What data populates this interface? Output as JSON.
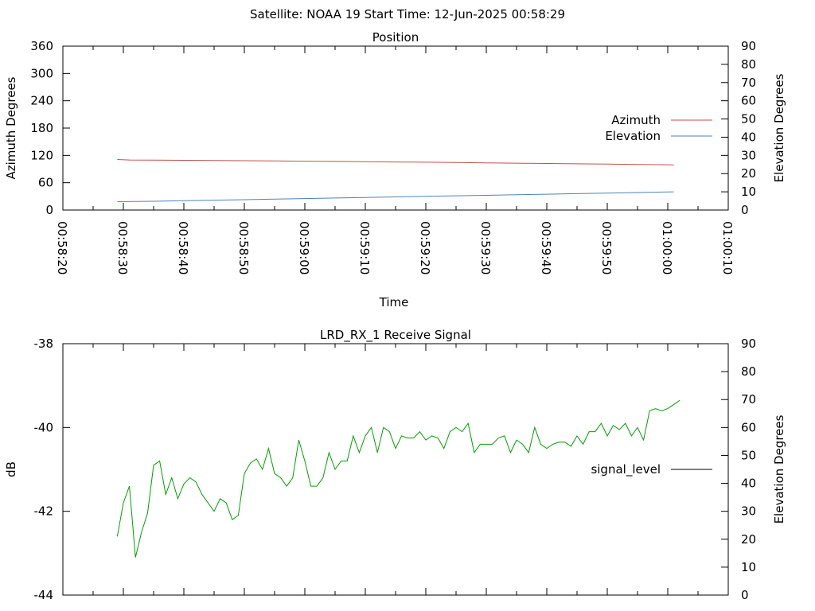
{
  "header": {
    "title": "Satellite: NOAA 19    Start Time: 12-Jun-2025 00:58:29"
  },
  "chart_data": [
    {
      "type": "line",
      "title": "Position",
      "xlabel": "Time",
      "ylabel": "Azimuth Degrees",
      "y2label": "Elevation Degrees",
      "xlim": [
        "00:58:20",
        "01:00:10"
      ],
      "x_ticks": [
        "00:58:20",
        "00:58:30",
        "00:58:40",
        "00:58:50",
        "00:59:00",
        "00:59:10",
        "00:59:20",
        "00:59:30",
        "00:59:40",
        "00:59:50",
        "01:00:00",
        "01:00:10"
      ],
      "ylim": [
        0,
        360
      ],
      "y_ticks": [
        "0",
        "60",
        "120",
        "180",
        "240",
        "300",
        "360"
      ],
      "y2lim": [
        0,
        90
      ],
      "y2_ticks": [
        "0",
        "10",
        "20",
        "30",
        "40",
        "50",
        "60",
        "70",
        "80",
        "90"
      ],
      "legend": "right",
      "grid": false,
      "series": [
        {
          "name": "Azimuth",
          "axis": "y",
          "color": "#c0504d",
          "x": [
            "00:58:29",
            "00:58:31",
            "00:58:35",
            "00:58:40",
            "00:58:45",
            "00:58:50",
            "00:58:55",
            "00:59:00",
            "00:59:05",
            "00:59:10",
            "00:59:15",
            "00:59:20",
            "00:59:25",
            "00:59:30",
            "00:59:35",
            "00:59:40",
            "00:59:45",
            "00:59:50",
            "00:59:55",
            "01:00:00",
            "01:00:01"
          ],
          "values": [
            111,
            110,
            109.6,
            109.2,
            108.8,
            108.3,
            107.8,
            107.3,
            106.8,
            106.2,
            105.6,
            105,
            104.3,
            103.6,
            102.9,
            102.2,
            101.5,
            100.8,
            100.1,
            99.4,
            99.2
          ]
        },
        {
          "name": "Elevation",
          "axis": "y2",
          "color": "#4f81bd",
          "x": [
            "00:58:29",
            "00:58:35",
            "00:58:40",
            "00:58:45",
            "00:58:50",
            "00:58:55",
            "00:59:00",
            "00:59:05",
            "00:59:10",
            "00:59:15",
            "00:59:20",
            "00:59:25",
            "00:59:30",
            "00:59:35",
            "00:59:40",
            "00:59:45",
            "00:59:50",
            "00:59:55",
            "01:00:00",
            "01:00:01"
          ],
          "values": [
            4.6,
            4.8,
            5.1,
            5.4,
            5.7,
            6.0,
            6.3,
            6.6,
            6.9,
            7.2,
            7.5,
            7.8,
            8.1,
            8.4,
            8.7,
            9.0,
            9.3,
            9.6,
            9.9,
            10.0
          ]
        }
      ]
    },
    {
      "type": "line",
      "title": "LRD_RX_1 Receive Signal",
      "xlabel": "",
      "ylabel": "dB",
      "y2label": "Elevation Degrees",
      "xlim": [
        "00:58:20",
        "01:00:10"
      ],
      "ylim": [
        -44,
        -38
      ],
      "y_ticks": [
        "-38",
        "-40",
        "-42",
        "-44"
      ],
      "y2lim": [
        0,
        90
      ],
      "y2_ticks": [
        "0",
        "10",
        "20",
        "30",
        "40",
        "50",
        "60",
        "70",
        "80",
        "90"
      ],
      "legend": "right",
      "grid": false,
      "series": [
        {
          "name": "signal_level",
          "color": "#00a000",
          "legend_color": "#000000",
          "x_start": "00:58:29",
          "x_step_seconds": 1,
          "values": [
            -42.6,
            -41.8,
            -41.4,
            -43.1,
            -42.5,
            -42.05,
            -40.9,
            -40.8,
            -41.6,
            -41.2,
            -41.7,
            -41.35,
            -41.2,
            -41.3,
            -41.6,
            -41.8,
            -42.0,
            -41.7,
            -41.8,
            -42.2,
            -42.1,
            -41.1,
            -40.85,
            -40.75,
            -41.0,
            -40.5,
            -41.1,
            -41.2,
            -41.4,
            -41.2,
            -40.3,
            -40.8,
            -41.4,
            -41.4,
            -41.2,
            -40.6,
            -41.0,
            -40.8,
            -40.8,
            -40.2,
            -40.6,
            -40.2,
            -40.0,
            -40.6,
            -40.0,
            -40.1,
            -40.5,
            -40.2,
            -40.25,
            -40.25,
            -40.1,
            -40.3,
            -40.2,
            -40.25,
            -40.5,
            -40.1,
            -40.0,
            -40.1,
            -39.9,
            -40.6,
            -40.4,
            -40.4,
            -40.4,
            -40.25,
            -40.2,
            -40.6,
            -40.3,
            -40.4,
            -40.6,
            -40.0,
            -40.4,
            -40.5,
            -40.4,
            -40.35,
            -40.35,
            -40.45,
            -40.2,
            -40.4,
            -40.1,
            -40.1,
            -39.9,
            -40.2,
            -39.95,
            -40.05,
            -39.9,
            -40.2,
            -40.0,
            -40.3,
            -39.6,
            -39.55,
            -39.6,
            -39.55,
            -39.45,
            -39.35
          ]
        }
      ]
    }
  ]
}
